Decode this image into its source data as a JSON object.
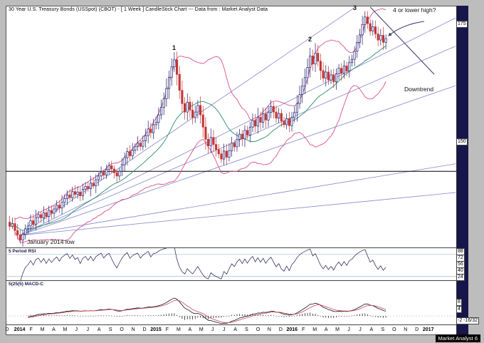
{
  "title": "30 Year U.S. Treasury Bonds (USSpot) (CBOT) -  [ 1 Week ] CandleStick Chart --- Data from : Market Analyst Data",
  "branding": "Market Analyst 6",
  "annotations": {
    "peak1": "1",
    "peak2": "2",
    "peak3": "3",
    "wave4_question": "4 or lower high?",
    "downtrend": "Downtrend",
    "jan_low": "January 2014 low"
  },
  "panels": {
    "rsi_label": "5 Period RSI",
    "macd_label": "5(25(5) MACD-C"
  },
  "axes": {
    "price_labels": [
      {
        "text": "175",
        "value": 175
      },
      {
        "text": "150",
        "value": 150
      }
    ],
    "rsi_labels": [
      {
        "text": "88",
        "value": 88
      },
      {
        "text": "72",
        "value": 72
      },
      {
        "text": "56",
        "value": 56
      },
      {
        "text": "40",
        "value": 40
      },
      {
        "text": "24",
        "value": 24
      }
    ],
    "macd_labels": [
      {
        "text": "8",
        "value": 8
      },
      {
        "text": "4",
        "value": 4
      },
      {
        "text": "-2 -16/32",
        "value": -2.5
      }
    ],
    "time_labels": [
      "D",
      "2014",
      "F",
      "M",
      "A",
      "M",
      "J",
      "J",
      "A",
      "S",
      "O",
      "N",
      "D",
      "2015",
      "F",
      "M",
      "A",
      "M",
      "J",
      "J",
      "A",
      "S",
      "O",
      "N",
      "D",
      "2016",
      "F",
      "M",
      "A",
      "M",
      "J",
      "J",
      "A",
      "S",
      "O",
      "N",
      "D",
      "2017"
    ]
  },
  "colors": {
    "up_candle": "#1b1b6b",
    "down_candle": "#c43434",
    "bollinger": "#d84f8c",
    "moving_average": "#2a8a6a",
    "fan_lines": "#8585cd",
    "rsi_line": "#1a1a50",
    "macd_line": "#111111",
    "macd_signal": "#cc4455",
    "annotation_line": "#3a3a6a",
    "support_line": "#000000",
    "scroll_strip": "#16164a"
  },
  "chart_data": {
    "type": "candlestick",
    "instrument": "30 Year U.S. Treasury Bonds (USSpot) (CBOT)",
    "period": "1 Week",
    "start": "Dec 2013",
    "end": "Sep 2016",
    "price_axis_range_approx": [
      127,
      179
    ],
    "closes": [
      132.8,
      131.9,
      132.5,
      131.0,
      130.1,
      129.0,
      130.2,
      131.4,
      132.0,
      133.1,
      132.3,
      133.8,
      134.4,
      133.7,
      134.8,
      134.0,
      135.3,
      134.7,
      135.6,
      136.4,
      135.8,
      137.0,
      137.8,
      138.6,
      138.0,
      139.3,
      138.7,
      139.2,
      138.4,
      139.8,
      140.4,
      139.9,
      141.1,
      140.5,
      141.8,
      142.6,
      143.4,
      142.8,
      144.0,
      144.8,
      144.1,
      143.3,
      142.6,
      143.6,
      145.0,
      146.5,
      147.8,
      146.9,
      148.1,
      148.9,
      149.6,
      148.9,
      150.1,
      151.2,
      152.6,
      151.8,
      153.5,
      154.0,
      155.6,
      157.2,
      159.0,
      161.2,
      163.6,
      165.8,
      167.3,
      164.2,
      160.8,
      158.0,
      156.2,
      158.3,
      156.6,
      155.0,
      156.2,
      157.6,
      155.6,
      153.0,
      150.4,
      149.0,
      150.8,
      149.3,
      148.2,
      147.3,
      146.2,
      147.9,
      146.6,
      148.0,
      149.6,
      148.8,
      150.4,
      151.5,
      150.5,
      152.3,
      151.3,
      153.0,
      154.4,
      153.2,
      155.1,
      154.0,
      155.8,
      154.5,
      156.1,
      157.4,
      156.2,
      154.9,
      155.9,
      154.3,
      153.5,
      154.8,
      153.3,
      155.0,
      156.1,
      158.0,
      159.9,
      161.7,
      163.5,
      165.7,
      168.1,
      166.4,
      168.7,
      167.0,
      165.0,
      163.4,
      164.7,
      163.0,
      164.1,
      162.6,
      164.3,
      165.5,
      164.4,
      166.0,
      164.9,
      166.7,
      167.4,
      169.1,
      171.0,
      172.6,
      174.8,
      176.4,
      175.0,
      173.4,
      174.3,
      172.8,
      171.5,
      172.5,
      171.0,
      171.8
    ],
    "overlays": {
      "bollinger_bands": {
        "period": 20,
        "stddev_mult": 2
      },
      "moving_average": {
        "period": 20
      },
      "support_line_price": 143.6,
      "fan_origin": {
        "week": 5,
        "price": 130
      },
      "fan_right_edge_prices": [
        193,
        176.2,
        170.2,
        161.8,
        145.2,
        139.1
      ],
      "downtrend_line": {
        "from": {
          "week": 139,
          "price": 178.5
        },
        "to": {
          "week": 163.5,
          "price": 164.2
        }
      }
    },
    "indicators": {
      "rsi": {
        "period": 5,
        "scale_labels": [
          88,
          72,
          56,
          40,
          24
        ]
      },
      "macd": {
        "fast": 5,
        "slow": 25,
        "signal": 5,
        "scale_labels": [
          8,
          4,
          -2.5
        ]
      }
    }
  }
}
